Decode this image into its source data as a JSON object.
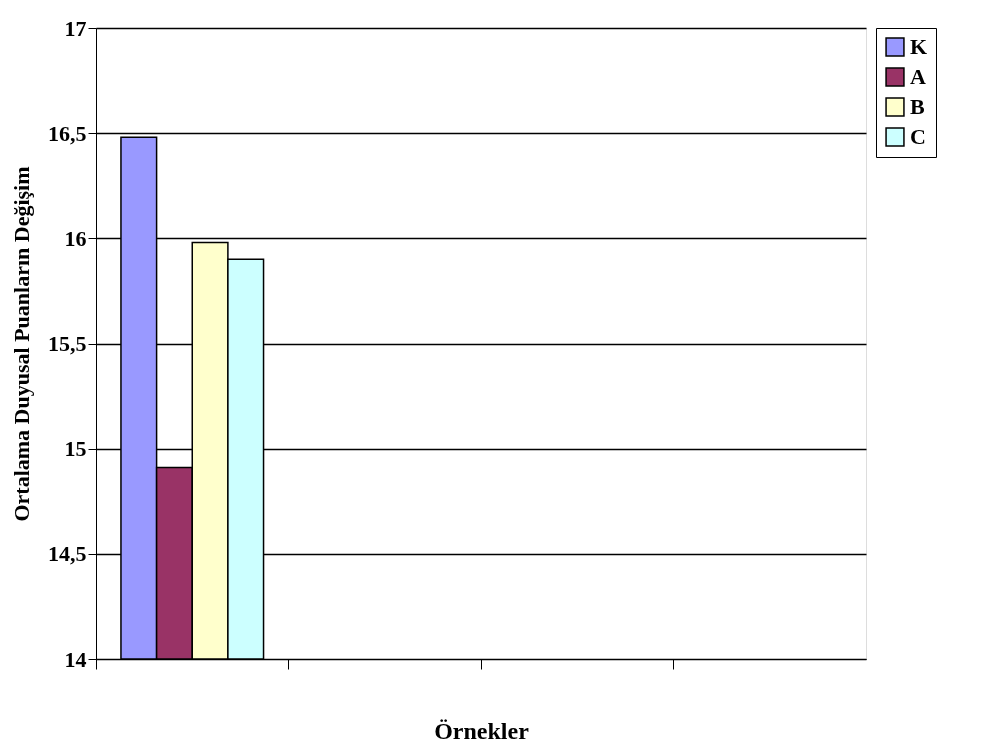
{
  "chart_data": {
    "type": "bar",
    "xlabel": "Örnekler",
    "ylabel": "Ortalama Duyusal Puanların Değişim",
    "categories": [
      null,
      null,
      null,
      null
    ],
    "series": [
      {
        "name": "K",
        "color": "#9999ff",
        "values": [
          16.48,
          null,
          null,
          null
        ]
      },
      {
        "name": "A",
        "color": "#993366",
        "values": [
          14.91,
          null,
          null,
          null
        ]
      },
      {
        "name": "B",
        "color": "#ffffcc",
        "values": [
          15.98,
          null,
          null,
          null
        ]
      },
      {
        "name": "C",
        "color": "#ccffff",
        "values": [
          15.9,
          null,
          null,
          null
        ]
      }
    ],
    "ylim": [
      14,
      17
    ],
    "yticks": [
      {
        "value": 14,
        "label": "14"
      },
      {
        "value": 14.5,
        "label": "14,5"
      },
      {
        "value": 15,
        "label": "15"
      },
      {
        "value": 15.5,
        "label": "15,5"
      },
      {
        "value": 16,
        "label": "16"
      },
      {
        "value": 16.5,
        "label": "16,5"
      },
      {
        "value": 17,
        "label": "17"
      }
    ],
    "grid": "y",
    "legend": "right",
    "tick_labels": "y"
  }
}
